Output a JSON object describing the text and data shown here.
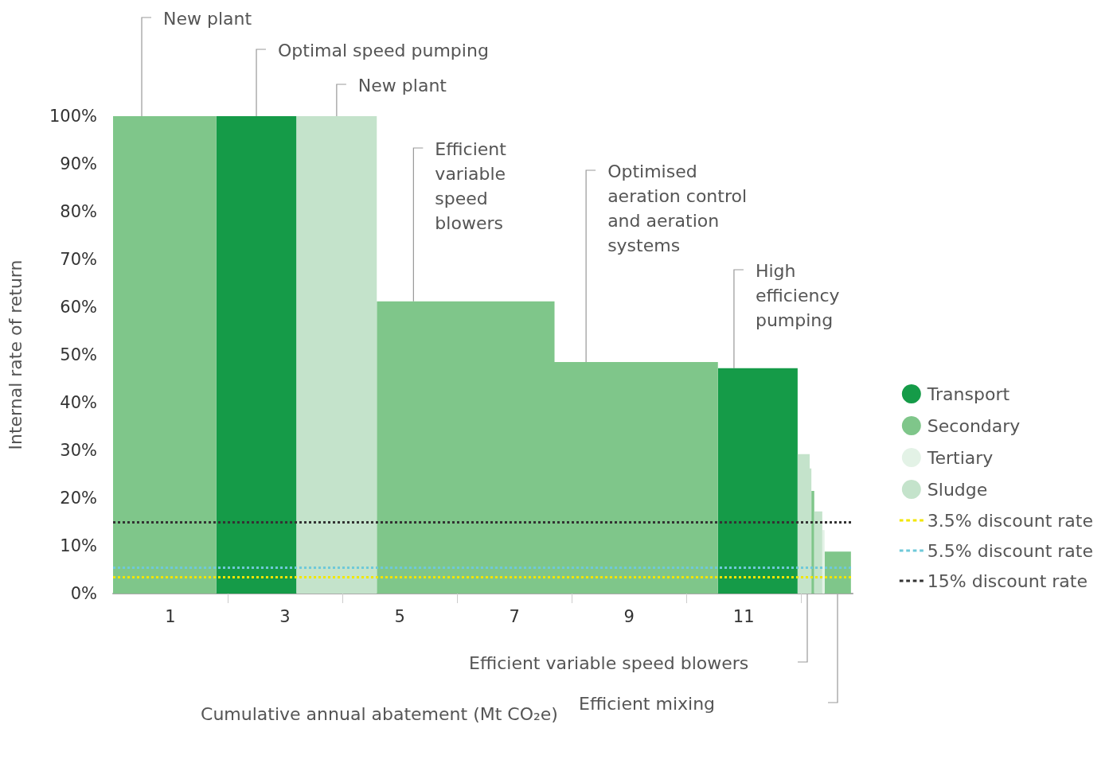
{
  "chart_data": {
    "type": "area",
    "xlabel": "Cumulative annual abatement (Mt CO₂e)",
    "ylabel": "Internal rate of return",
    "series": [
      {
        "name": "Transport",
        "color": "#159b48",
        "x": [
          1.8,
          3.2,
          3.2,
          10.55,
          10.55,
          11.94
        ],
        "values": [
          100,
          100,
          0,
          0,
          47.2,
          47.2
        ]
      },
      {
        "name": "Secondary",
        "color": "#7fc68a",
        "x": [
          0,
          1.8,
          1.8,
          4.6,
          4.6,
          7.7,
          7.7,
          10.55,
          10.55,
          12.18,
          12.18,
          12.23,
          12.23,
          12.41,
          12.41,
          12.87
        ],
        "values": [
          100,
          100,
          0,
          0,
          61.2,
          61.2,
          48.5,
          48.5,
          0,
          0,
          21.5,
          21.5,
          0,
          0,
          8.8,
          8.8
        ]
      },
      {
        "name": "Tertiary",
        "color": "#e3f2e6",
        "x": [
          12.37,
          12.41
        ],
        "values": [
          13.3,
          13.3
        ]
      },
      {
        "name": "Sludge",
        "color": "#c4e3cb",
        "x": [
          3.2,
          4.6,
          4.6,
          11.94,
          11.94,
          12.15,
          12.15,
          12.18,
          12.18,
          12.23,
          12.23,
          12.37
        ],
        "values": [
          100,
          100,
          0,
          0,
          29.2,
          29.2,
          26.2,
          26.2,
          0,
          0,
          17.2,
          17.2
        ]
      }
    ],
    "ref_lines": [
      {
        "axis": "y",
        "value": 3.5,
        "label": "3.5% discount rate",
        "color": "#f2e600",
        "line_style": "dotted"
      },
      {
        "axis": "y",
        "value": 5.5,
        "label": "5.5% discount rate",
        "color": "#6fc9d9",
        "line_style": "dotted"
      },
      {
        "axis": "y",
        "value": 15,
        "label": "15% discount rate",
        "color": "#333333",
        "line_style": "dotted"
      }
    ],
    "annotations": [
      {
        "text": "New plant",
        "x": 0.5,
        "y": 100
      },
      {
        "text": "Optimal speed pumping",
        "x": 2.5,
        "y": 100
      },
      {
        "text": "New plant",
        "x": 3.9,
        "y": 100
      },
      {
        "text": "Efficient variable speed blowers",
        "x": 5.24,
        "y": 61.2
      },
      {
        "text": "Optimised aeration control and aeration systems",
        "x": 8.25,
        "y": 48.5
      },
      {
        "text": "High efficiency pumping",
        "x": 10.83,
        "y": 47.2
      },
      "Efficient variable speed blowers",
      "Efficient mixing"
    ],
    "xlim": [
      0,
      12.9
    ],
    "xticks": [
      {
        "value": 1,
        "label": "1"
      },
      {
        "value": 2,
        "label": null
      },
      {
        "value": 3,
        "label": "3"
      },
      {
        "value": 4,
        "label": null
      },
      {
        "value": 5,
        "label": "5"
      },
      {
        "value": 6,
        "label": null
      },
      {
        "value": 7,
        "label": "7"
      },
      {
        "value": 8,
        "label": null
      },
      {
        "value": 9,
        "label": "9"
      },
      {
        "value": 10,
        "label": null
      },
      {
        "value": 11,
        "label": "11"
      },
      {
        "value": 12,
        "label": null
      }
    ],
    "ylim": [
      0,
      100
    ],
    "yticks": [
      {
        "value": 0,
        "label": "0%"
      },
      {
        "value": 10,
        "label": "10%"
      },
      {
        "value": 20,
        "label": "20%"
      },
      {
        "value": 30,
        "label": "30%"
      },
      {
        "value": 40,
        "label": "40%"
      },
      {
        "value": 50,
        "label": "50%"
      },
      {
        "value": 60,
        "label": "60%"
      },
      {
        "value": 70,
        "label": "70%"
      },
      {
        "value": 80,
        "label": "80%"
      },
      {
        "value": 90,
        "label": "90%"
      },
      {
        "value": 100,
        "label": "100%"
      }
    ],
    "grid": false,
    "legend": "right",
    "marker": "none"
  }
}
